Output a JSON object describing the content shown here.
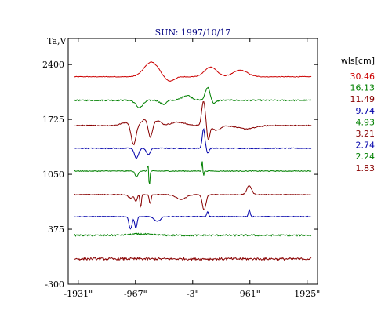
{
  "chart_data": {
    "type": "line",
    "title": "SUN: 1997/10/17",
    "ylabel": "Ta,V",
    "xlabel": "",
    "xlim": [
      -2100,
      2100
    ],
    "ylim": [
      -300,
      2720
    ],
    "x_ticks": [
      -1931,
      -967,
      -3,
      961,
      1925
    ],
    "x_tick_labels": [
      "-1931\"",
      "-967\"",
      "-3\"",
      "961\"",
      "1925\""
    ],
    "y_ticks": [
      2400,
      1725,
      1050,
      375,
      -300
    ],
    "y_tick_labels": [
      "2400",
      "1725",
      "1050",
      "375",
      "-300"
    ],
    "grid": false,
    "legend_title": "wls[cm]",
    "legend_position": "right",
    "series": [
      {
        "name": "30.46",
        "color": "#cc0000",
        "baseline": 2250,
        "features": [
          [
            -700,
            180,
            120
          ],
          [
            -400,
            -60,
            80
          ],
          [
            300,
            120,
            100
          ],
          [
            800,
            80,
            120
          ]
        ],
        "noise": 4
      },
      {
        "name": "16.13",
        "color": "#008000",
        "baseline": 1960,
        "features": [
          [
            -900,
            -90,
            60
          ],
          [
            -500,
            -50,
            50
          ],
          [
            -100,
            60,
            80
          ],
          [
            250,
            160,
            40
          ],
          [
            350,
            -40,
            40
          ]
        ],
        "noise": 8
      },
      {
        "name": "11.49",
        "color": "#880000",
        "baseline": 1650,
        "features": [
          [
            -1100,
            40,
            100
          ],
          [
            -1000,
            -260,
            40
          ],
          [
            -800,
            80,
            60
          ],
          [
            -720,
            -180,
            35
          ],
          [
            -600,
            60,
            60
          ],
          [
            -250,
            40,
            120
          ],
          [
            180,
            300,
            30
          ],
          [
            260,
            -180,
            25
          ],
          [
            400,
            -60,
            60
          ],
          [
            900,
            -40,
            150
          ]
        ],
        "noise": 6
      },
      {
        "name": "9.74",
        "color": "#0000aa",
        "baseline": 1370,
        "features": [
          [
            -950,
            -120,
            35
          ],
          [
            -750,
            -80,
            30
          ],
          [
            180,
            240,
            22
          ],
          [
            250,
            -60,
            20
          ]
        ],
        "noise": 6
      },
      {
        "name": "4.93",
        "color": "#008000",
        "baseline": 1090,
        "features": [
          [
            -950,
            -70,
            25
          ],
          [
            -750,
            120,
            12
          ],
          [
            -735,
            -240,
            10
          ],
          [
            160,
            150,
            10
          ],
          [
            175,
            -90,
            10
          ]
        ],
        "noise": 5
      },
      {
        "name": "3.21",
        "color": "#880000",
        "baseline": 800,
        "features": [
          [
            -1050,
            -40,
            40
          ],
          [
            -960,
            -80,
            20
          ],
          [
            -880,
            -160,
            12
          ],
          [
            -720,
            -110,
            15
          ],
          [
            -200,
            -60,
            80
          ],
          [
            190,
            -190,
            30
          ],
          [
            950,
            110,
            40
          ]
        ],
        "noise": 5
      },
      {
        "name": "2.74",
        "color": "#0000aa",
        "baseline": 530,
        "features": [
          [
            -1050,
            -150,
            25
          ],
          [
            -960,
            -140,
            20
          ],
          [
            -600,
            -60,
            50
          ],
          [
            250,
            60,
            15
          ],
          [
            950,
            80,
            15
          ]
        ],
        "noise": 5
      },
      {
        "name": "2.24",
        "color": "#008000",
        "baseline": 300,
        "features": [
          [
            -900,
            15,
            200
          ]
        ],
        "noise": 10
      },
      {
        "name": "1.83",
        "color": "#880000",
        "baseline": 10,
        "features": [],
        "noise": 14
      }
    ]
  }
}
